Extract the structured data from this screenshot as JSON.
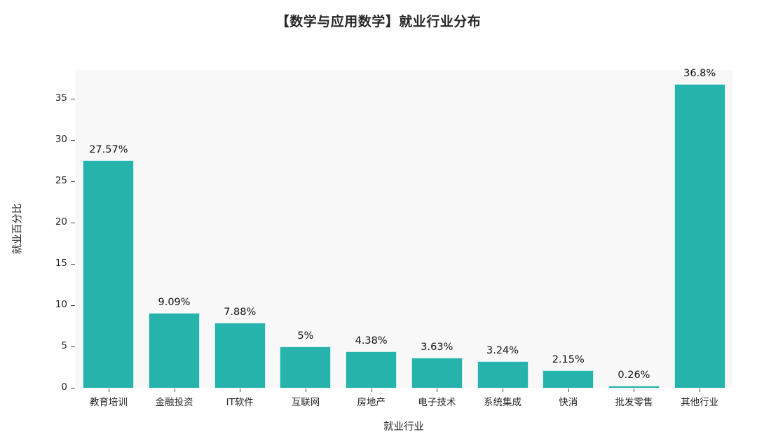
{
  "chart_data": {
    "type": "bar",
    "title": "【数学与应用数学】就业行业分布",
    "xlabel": "就业行业",
    "ylabel": "就业百分比",
    "categories": [
      "教育培训",
      "金融投资",
      "IT软件",
      "互联网",
      "房地产",
      "电子技术",
      "系统集成",
      "快消",
      "批发零售",
      "其他行业"
    ],
    "values": [
      27.57,
      9.09,
      7.88,
      5,
      4.38,
      3.63,
      3.24,
      2.15,
      0.26,
      36.8
    ],
    "value_labels": [
      "27.57%",
      "9.09%",
      "7.88%",
      "5%",
      "4.38%",
      "3.63%",
      "3.24%",
      "2.15%",
      "0.26%",
      "36.8%"
    ],
    "yticks": [
      0,
      5,
      10,
      15,
      20,
      25,
      30,
      35
    ],
    "ylim": [
      0,
      38.5
    ],
    "grid": false,
    "legend_position": "none",
    "bar_color": "#26b3ab",
    "plot_background": "#f8f8f8",
    "paper_background": "#ffffff",
    "text_color": "#262626"
  }
}
